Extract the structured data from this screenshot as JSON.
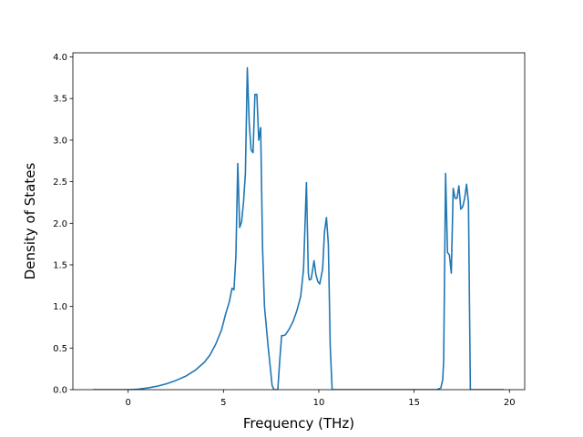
{
  "chart_data": {
    "type": "line",
    "title": "",
    "xlabel": "Frequency (THz)",
    "ylabel": "Density of States",
    "xlim": [
      -2.9,
      20.8
    ],
    "ylim": [
      0,
      4.05
    ],
    "xticks": [
      0,
      5,
      10,
      15,
      20
    ],
    "yticks": [
      0.0,
      0.5,
      1.0,
      1.5,
      2.0,
      2.5,
      3.0,
      3.5,
      4.0
    ],
    "ytick_labels": [
      "0.0",
      "0.5",
      "1.0",
      "1.5",
      "2.0",
      "2.5",
      "3.0",
      "3.5",
      "4.0"
    ],
    "grid": false,
    "series": [
      {
        "color": "#1f77b4",
        "x": [
          -1.85,
          -1.0,
          0.0,
          0.5,
          1.0,
          1.5,
          2.0,
          2.5,
          3.0,
          3.5,
          4.0,
          4.3,
          4.6,
          4.9,
          5.1,
          5.3,
          5.45,
          5.55,
          5.65,
          5.75,
          5.85,
          5.95,
          6.05,
          6.15,
          6.25,
          6.35,
          6.45,
          6.55,
          6.65,
          6.75,
          6.85,
          6.95,
          7.05,
          7.15,
          7.25,
          7.35,
          7.45,
          7.55,
          7.65,
          7.75,
          7.85,
          7.95,
          8.05,
          8.15,
          8.25,
          8.45,
          8.65,
          8.85,
          9.05,
          9.2,
          9.35,
          9.45,
          9.5,
          9.6,
          9.75,
          9.85,
          9.95,
          10.05,
          10.2,
          10.3,
          10.4,
          10.5,
          10.6,
          10.7,
          10.8,
          10.9,
          11.5,
          13.0,
          15.0,
          16.2,
          16.4,
          16.5,
          16.55,
          16.65,
          16.75,
          16.85,
          16.95,
          17.05,
          17.15,
          17.25,
          17.35,
          17.45,
          17.55,
          17.65,
          17.75,
          17.85,
          17.95,
          18.1,
          19.7
        ],
        "y": [
          0.0,
          0.0,
          0.0,
          0.005,
          0.02,
          0.04,
          0.07,
          0.11,
          0.16,
          0.23,
          0.33,
          0.42,
          0.55,
          0.72,
          0.9,
          1.05,
          1.22,
          1.2,
          1.6,
          2.72,
          1.95,
          2.02,
          2.25,
          2.6,
          3.87,
          3.2,
          2.88,
          2.85,
          3.55,
          3.55,
          3.0,
          3.15,
          1.7,
          1.0,
          0.75,
          0.5,
          0.28,
          0.05,
          0.0,
          0.0,
          0.0,
          0.35,
          0.65,
          0.65,
          0.66,
          0.73,
          0.82,
          0.95,
          1.12,
          1.45,
          2.49,
          1.4,
          1.32,
          1.33,
          1.55,
          1.38,
          1.3,
          1.27,
          1.45,
          1.9,
          2.07,
          1.75,
          0.52,
          0.0,
          0.0,
          0.0,
          0.0,
          0.0,
          0.0,
          0.0,
          0.02,
          0.12,
          0.35,
          2.6,
          1.65,
          1.62,
          1.4,
          2.42,
          2.3,
          2.3,
          2.45,
          2.17,
          2.2,
          2.3,
          2.47,
          2.25,
          0.0,
          0.0,
          0.0
        ]
      }
    ]
  }
}
